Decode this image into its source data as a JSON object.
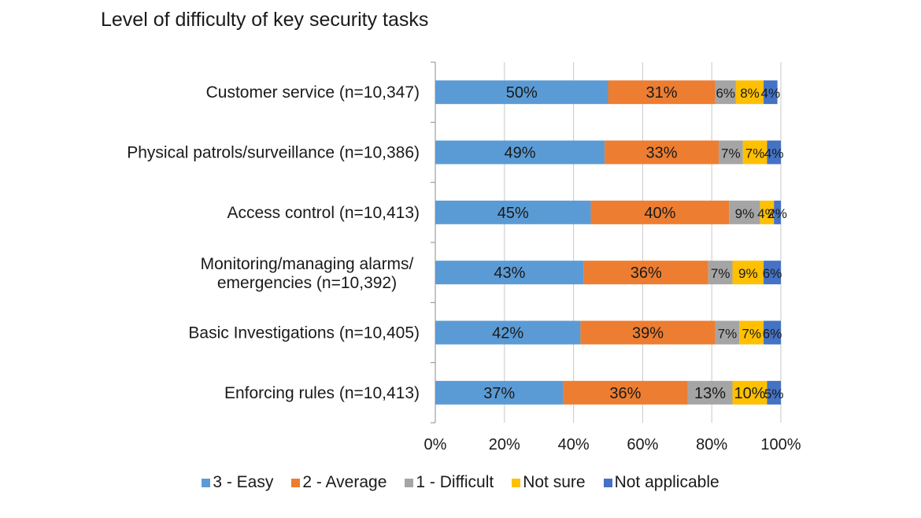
{
  "chart_data": {
    "type": "bar",
    "orientation": "horizontal",
    "stacked": true,
    "percent_stacked": true,
    "title": "Level of difficulty of key security tasks",
    "categories": [
      "Customer service (n=10,347)",
      "Physical patrols/surveillance (n=10,386)",
      "Access control (n=10,413)",
      "Monitoring/managing alarms/ emergencies (n=10,392)",
      "Basic Investigations (n=10,405)",
      "Enforcing rules (n=10,413)"
    ],
    "series": [
      {
        "name": "3 - Easy",
        "color": "#5B9BD5",
        "values": [
          50,
          49,
          45,
          43,
          42,
          37
        ]
      },
      {
        "name": "2 - Average",
        "color": "#ED7D31",
        "values": [
          31,
          33,
          40,
          36,
          39,
          36
        ]
      },
      {
        "name": "1 - Difficult",
        "color": "#A5A5A5",
        "values": [
          6,
          7,
          9,
          7,
          7,
          13
        ]
      },
      {
        "name": "Not sure",
        "color": "#FFC000",
        "values": [
          8,
          7,
          4,
          9,
          7,
          10
        ]
      },
      {
        "name": "Not applicable",
        "color": "#4472C4",
        "values": [
          4,
          4,
          2,
          6,
          6,
          5
        ]
      }
    ],
    "xlim": [
      0,
      100
    ],
    "x_ticks": [
      "0%",
      "20%",
      "40%",
      "60%",
      "80%",
      "100%"
    ],
    "xlabel": "",
    "ylabel": "",
    "grid": "vertical",
    "legend_position": "bottom",
    "data_labels": true
  }
}
